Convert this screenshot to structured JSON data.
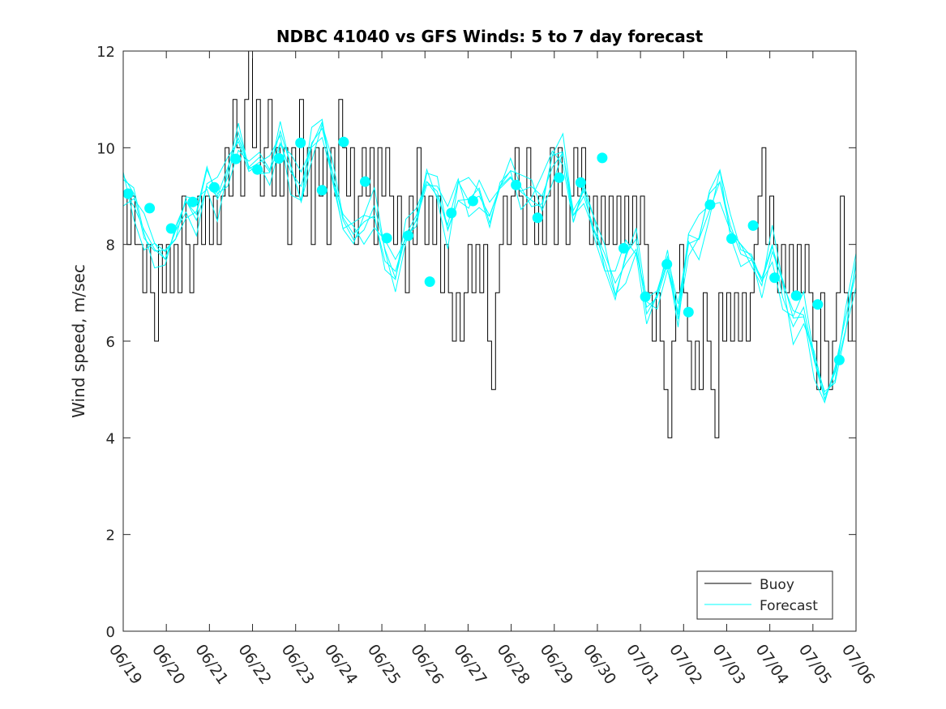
{
  "chart_data": {
    "type": "line",
    "title": "NDBC 41040 vs GFS Winds: 5 to 7 day forecast",
    "xlabel": "",
    "ylabel": "Wind speed, m/sec",
    "xlim": [
      "06/19",
      "07/06"
    ],
    "ylim": [
      0,
      12
    ],
    "yticks": [
      "0",
      "2",
      "4",
      "6",
      "8",
      "10",
      "12"
    ],
    "xticks": [
      "06/19",
      "06/20",
      "06/21",
      "06/22",
      "06/23",
      "06/24",
      "06/25",
      "06/26",
      "06/27",
      "06/28",
      "06/29",
      "06/30",
      "07/01",
      "07/02",
      "07/03",
      "07/04",
      "07/05",
      "07/06"
    ],
    "grid": false,
    "legend": "bottom-right",
    "series": [
      {
        "name": "Buoy",
        "color": "#000000",
        "style": "stepped line, integer-valued observations",
        "values": [
          9,
          8,
          9,
          8,
          8,
          7,
          8,
          7,
          6,
          8,
          7,
          8,
          7,
          8,
          7,
          9,
          8,
          7,
          8,
          9,
          8,
          9,
          8,
          9,
          8,
          9,
          10,
          9,
          11,
          10,
          9,
          11,
          12,
          10,
          11,
          9,
          10,
          11,
          9,
          10,
          9,
          10,
          8,
          10,
          9,
          11,
          9,
          10,
          8,
          10,
          9,
          10,
          8,
          10,
          9,
          11,
          10,
          9,
          10,
          8,
          9,
          10,
          9,
          10,
          8,
          10,
          9,
          10,
          9,
          8,
          9,
          8,
          7,
          9,
          8,
          10,
          9,
          8,
          9,
          8,
          9,
          7,
          8,
          7,
          6,
          7,
          6,
          7,
          8,
          7,
          8,
          7,
          8,
          6,
          5,
          7,
          8,
          9,
          8,
          9,
          10,
          9,
          8,
          10,
          9,
          8,
          9,
          8,
          9,
          10,
          8,
          10,
          9,
          8,
          9,
          10,
          9,
          10,
          9,
          8,
          9,
          8,
          9,
          8,
          9,
          8,
          9,
          8,
          9,
          8,
          9,
          8,
          9,
          8,
          7,
          6,
          7,
          6,
          5,
          4,
          6,
          7,
          8,
          7,
          6,
          5,
          6,
          5,
          7,
          6,
          5,
          4,
          7,
          6,
          7,
          6,
          7,
          6,
          7,
          6,
          7,
          8,
          9,
          10,
          8,
          9,
          8,
          7,
          8,
          7,
          8,
          7,
          8,
          7,
          8,
          7,
          6,
          5,
          7,
          6,
          5,
          6,
          7,
          9,
          7,
          6,
          7
        ]
      },
      {
        "name": "Forecast",
        "color": "#00ffff",
        "style": "several overlapping forecast lines",
        "values": [
          9.1,
          8.8,
          8.3,
          7.9,
          7.7,
          8.3,
          8.9,
          8.5,
          9.2,
          9.0,
          9.6,
          10.2,
          9.6,
          9.8,
          9.5,
          10.1,
          9.5,
          9.2,
          10.1,
          10.4,
          9.5,
          8.5,
          8.1,
          8.3,
          8.8,
          7.9,
          7.3,
          8.2,
          8.6,
          9.3,
          9.0,
          8.4,
          9.3,
          8.9,
          9.0,
          8.6,
          9.2,
          9.4,
          9.1,
          9.2,
          9.0,
          9.6,
          9.9,
          8.6,
          9.0,
          8.3,
          7.8,
          7.2,
          7.6,
          7.9,
          6.7,
          6.9,
          7.6,
          6.6,
          8.2,
          8.1,
          8.7,
          9.3,
          8.4,
          7.8,
          7.7,
          7.3,
          8.0,
          6.9,
          6.3,
          6.7,
          5.6,
          4.8,
          5.4,
          6.5,
          7.4
        ]
      },
      {
        "name": "",
        "color": "#00ffff",
        "style": "filled circle markers (forecast at issue times)",
        "x": [
          "06/19 00:00",
          "06/19 12:00",
          "06/20 00:00",
          "06/20 12:00",
          "06/21 00:00",
          "06/21 12:00",
          "06/22 00:00",
          "06/22 12:00",
          "06/23 00:00",
          "06/23 12:00",
          "06/24 00:00",
          "06/24 12:00",
          "06/25 00:00",
          "06/25 12:00",
          "06/26 00:00",
          "06/26 12:00",
          "06/27 00:00",
          "06/28 00:00",
          "06/28 12:00",
          "06/29 00:00",
          "06/29 12:00",
          "06/30 00:00",
          "06/30 12:00",
          "07/01 00:00",
          "07/01 12:00",
          "07/02 00:00",
          "07/02 12:00",
          "07/03 00:00",
          "07/03 12:00",
          "07/04 00:00",
          "07/04 12:00",
          "07/05 00:00",
          "07/05 12:00"
        ],
        "values": [
          9.05,
          8.75,
          8.33,
          8.88,
          9.18,
          9.77,
          9.55,
          9.78,
          10.1,
          9.12,
          10.12,
          9.3,
          8.13,
          8.18,
          7.23,
          8.65,
          8.9,
          9.23,
          8.55,
          9.38,
          9.28,
          9.79,
          7.92,
          6.92,
          7.59,
          6.6,
          8.82,
          8.12,
          8.39,
          7.31,
          6.94,
          6.76,
          5.61
        ]
      }
    ],
    "legend_entries": [
      "Buoy",
      "Forecast"
    ]
  }
}
